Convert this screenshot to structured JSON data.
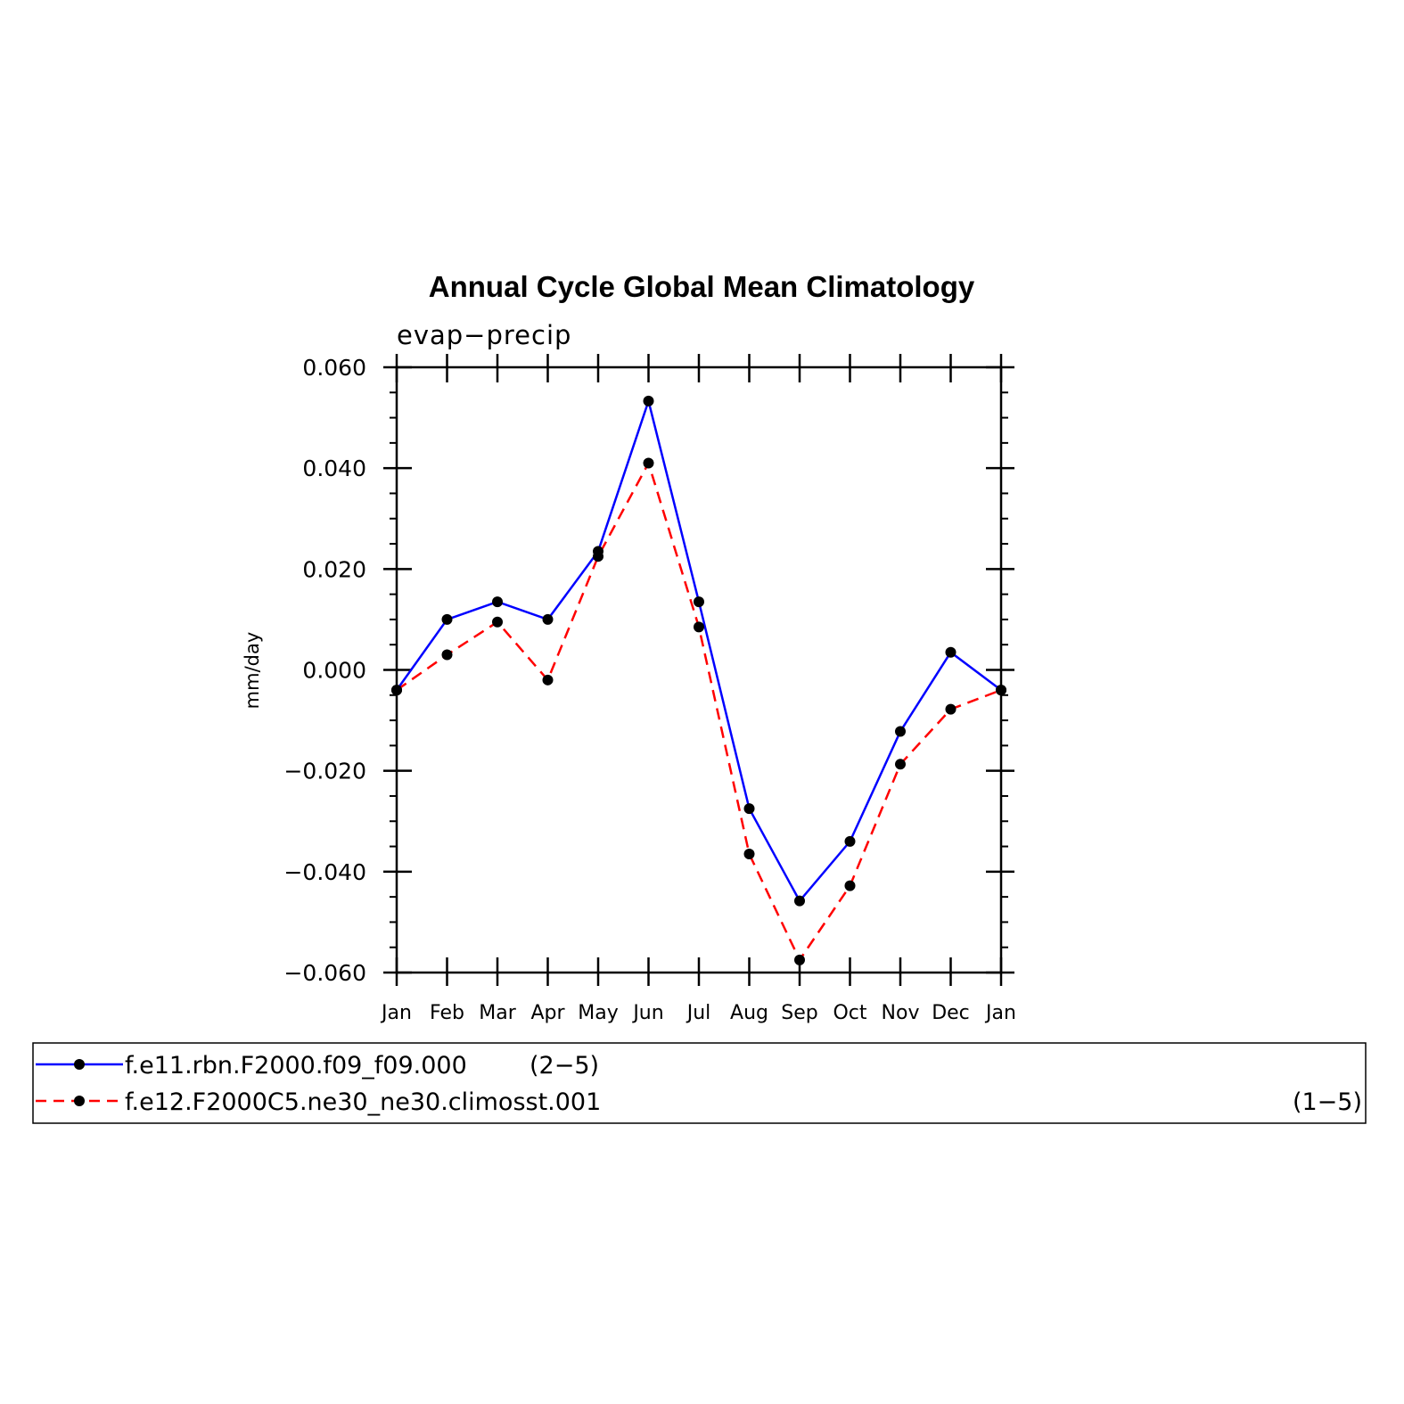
{
  "chart_data": {
    "type": "line",
    "title": "Annual Cycle Global Mean Climatology",
    "subtitle": "evap−precip",
    "ylabel": "mm/day",
    "xlabel": "",
    "categories": [
      "Jan",
      "Feb",
      "Mar",
      "Apr",
      "May",
      "Jun",
      "Jul",
      "Aug",
      "Sep",
      "Oct",
      "Nov",
      "Dec",
      "Jan"
    ],
    "ylim": [
      -0.06,
      0.06
    ],
    "yticks": [
      0.06,
      0.04,
      0.02,
      0.0,
      -0.02,
      -0.04,
      -0.06
    ],
    "ytick_labels": [
      "0.060",
      "0.040",
      "0.020",
      "0.000",
      "−0.020",
      "−0.040",
      "−0.060"
    ],
    "grid": false,
    "legend_position": "bottom",
    "series": [
      {
        "name": "f.e11.rbn.F2000.f09_f09.000",
        "legend_suffix": "(2−5)",
        "color": "#0000ff",
        "style": "solid",
        "marker": "dot",
        "values": [
          -0.004,
          0.01,
          0.0135,
          0.01,
          0.0235,
          0.0533,
          0.0135,
          -0.0275,
          -0.0458,
          -0.034,
          -0.0122,
          0.0035,
          -0.004
        ]
      },
      {
        "name": "f.e12.F2000C5.ne30_ne30.climosst.001",
        "legend_suffix": "(1−5)",
        "color": "#ff0000",
        "style": "dashed",
        "marker": "dot",
        "values": [
          -0.004,
          0.003,
          0.0095,
          -0.002,
          0.0225,
          0.041,
          0.0085,
          -0.0365,
          -0.0575,
          -0.0428,
          -0.0187,
          -0.0078,
          -0.004
        ]
      }
    ]
  }
}
